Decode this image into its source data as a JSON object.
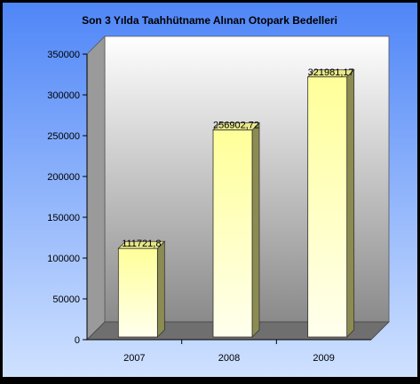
{
  "chart_data": {
    "type": "bar",
    "title": "Son 3 Yılda Taahhütname Alınan Otopark Bedelleri",
    "categories": [
      "2007",
      "2008",
      "2009"
    ],
    "values": [
      111721.8,
      256902.72,
      321981.17
    ],
    "data_labels": [
      "111721,8",
      "256902,72",
      "321981,17"
    ],
    "y_ticks": [
      "0",
      "50000",
      "100000",
      "150000",
      "200000",
      "250000",
      "300000",
      "350000"
    ],
    "ylim": [
      0,
      350000
    ],
    "xlabel": "",
    "ylabel": "",
    "grid": false,
    "legend": "none",
    "three_d": true,
    "colors": {
      "background_top": "#4f86f7",
      "background_bottom": "#cfe1ff",
      "wall_top": "#ffffff",
      "wall_bottom": "#8a8a8a",
      "bar_front_top": "#ffff99",
      "bar_front_bottom": "#ffffee",
      "bar_side": "#8c8c52",
      "floor": "#6f6f6f"
    }
  }
}
